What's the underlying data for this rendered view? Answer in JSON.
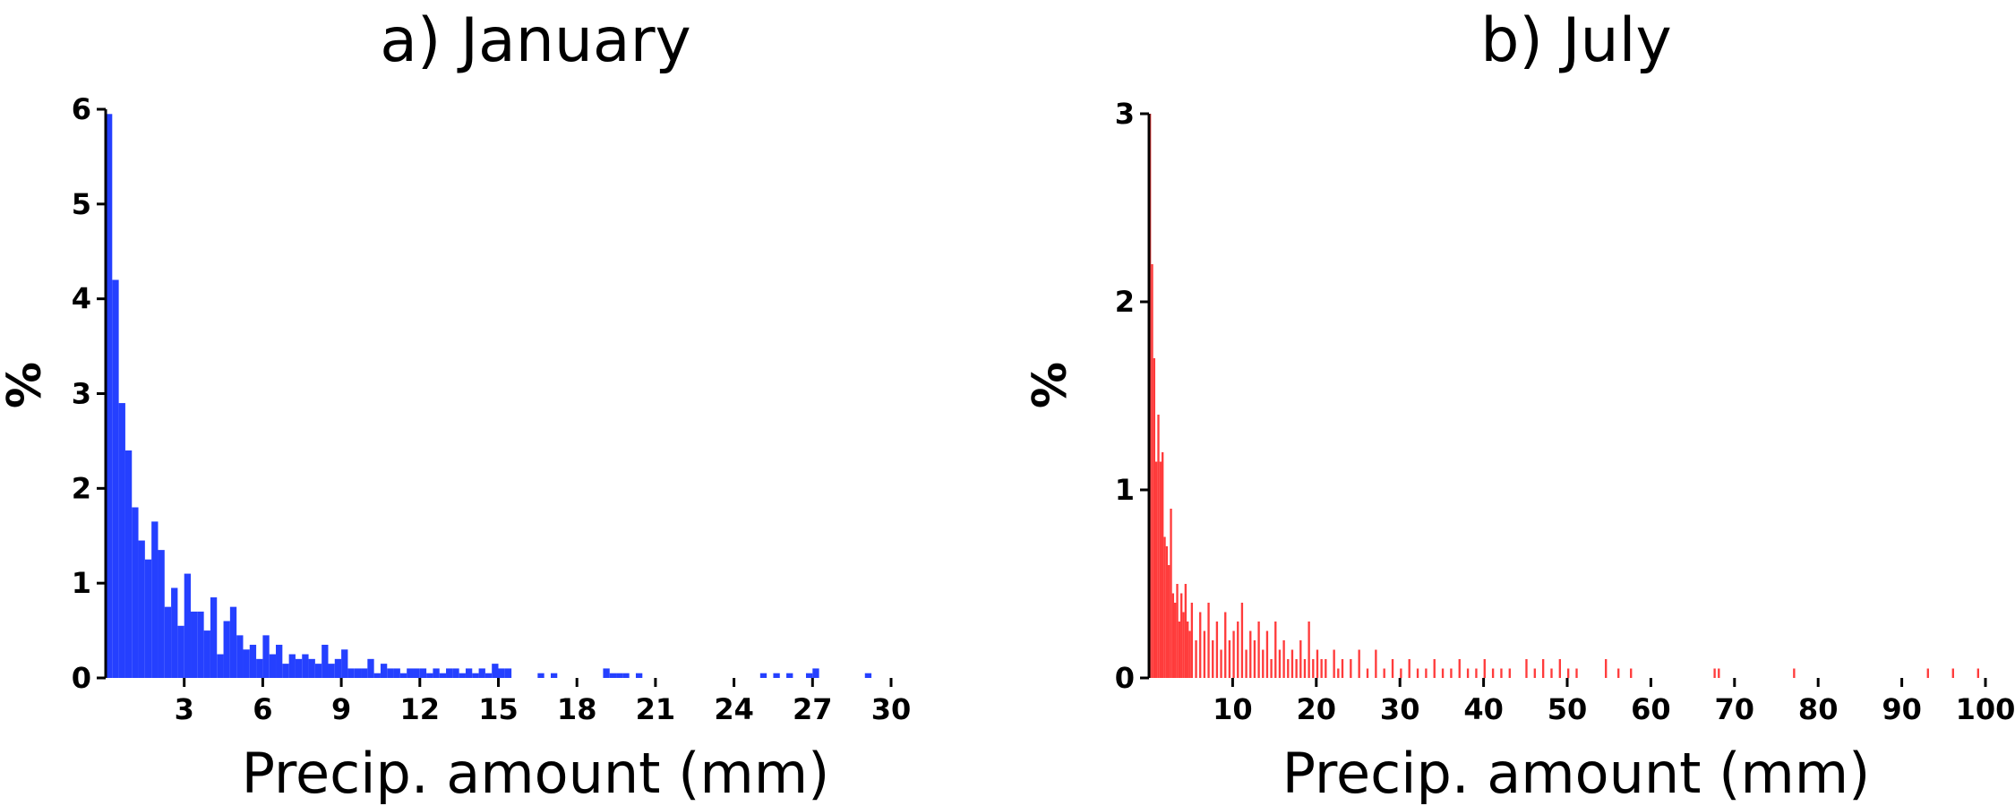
{
  "chart_data": [
    {
      "type": "bar",
      "title": "a) January",
      "xlabel": "Precip. amount (mm)",
      "ylabel": "%",
      "color": "#2540ff",
      "xlim": [
        0,
        30
      ],
      "ylim": [
        0,
        6
      ],
      "xticks": [
        3,
        6,
        9,
        12,
        15,
        18,
        21,
        24,
        27,
        30
      ],
      "yticks": [
        0,
        1,
        2,
        3,
        4,
        5,
        6
      ],
      "bin_width": 0.25,
      "bins": [
        {
          "x": 0.0,
          "y": 5.95
        },
        {
          "x": 0.25,
          "y": 4.2
        },
        {
          "x": 0.5,
          "y": 2.9
        },
        {
          "x": 0.75,
          "y": 2.4
        },
        {
          "x": 1.0,
          "y": 1.8
        },
        {
          "x": 1.25,
          "y": 1.45
        },
        {
          "x": 1.5,
          "y": 1.25
        },
        {
          "x": 1.75,
          "y": 1.65
        },
        {
          "x": 2.0,
          "y": 1.35
        },
        {
          "x": 2.25,
          "y": 0.75
        },
        {
          "x": 2.5,
          "y": 0.95
        },
        {
          "x": 2.75,
          "y": 0.55
        },
        {
          "x": 3.0,
          "y": 1.1
        },
        {
          "x": 3.25,
          "y": 0.7
        },
        {
          "x": 3.5,
          "y": 0.7
        },
        {
          "x": 3.75,
          "y": 0.5
        },
        {
          "x": 4.0,
          "y": 0.85
        },
        {
          "x": 4.25,
          "y": 0.25
        },
        {
          "x": 4.5,
          "y": 0.6
        },
        {
          "x": 4.75,
          "y": 0.75
        },
        {
          "x": 5.0,
          "y": 0.45
        },
        {
          "x": 5.25,
          "y": 0.3
        },
        {
          "x": 5.5,
          "y": 0.35
        },
        {
          "x": 5.75,
          "y": 0.2
        },
        {
          "x": 6.0,
          "y": 0.45
        },
        {
          "x": 6.25,
          "y": 0.25
        },
        {
          "x": 6.5,
          "y": 0.35
        },
        {
          "x": 6.75,
          "y": 0.15
        },
        {
          "x": 7.0,
          "y": 0.25
        },
        {
          "x": 7.25,
          "y": 0.2
        },
        {
          "x": 7.5,
          "y": 0.25
        },
        {
          "x": 7.75,
          "y": 0.2
        },
        {
          "x": 8.0,
          "y": 0.15
        },
        {
          "x": 8.25,
          "y": 0.35
        },
        {
          "x": 8.5,
          "y": 0.15
        },
        {
          "x": 8.75,
          "y": 0.2
        },
        {
          "x": 9.0,
          "y": 0.3
        },
        {
          "x": 9.25,
          "y": 0.1
        },
        {
          "x": 9.5,
          "y": 0.1
        },
        {
          "x": 9.75,
          "y": 0.1
        },
        {
          "x": 10.0,
          "y": 0.2
        },
        {
          "x": 10.25,
          "y": 0.05
        },
        {
          "x": 10.5,
          "y": 0.15
        },
        {
          "x": 10.75,
          "y": 0.1
        },
        {
          "x": 11.0,
          "y": 0.1
        },
        {
          "x": 11.25,
          "y": 0.05
        },
        {
          "x": 11.5,
          "y": 0.1
        },
        {
          "x": 11.75,
          "y": 0.1
        },
        {
          "x": 12.0,
          "y": 0.1
        },
        {
          "x": 12.25,
          "y": 0.05
        },
        {
          "x": 12.5,
          "y": 0.1
        },
        {
          "x": 12.75,
          "y": 0.05
        },
        {
          "x": 13.0,
          "y": 0.1
        },
        {
          "x": 13.25,
          "y": 0.1
        },
        {
          "x": 13.5,
          "y": 0.05
        },
        {
          "x": 13.75,
          "y": 0.1
        },
        {
          "x": 14.0,
          "y": 0.05
        },
        {
          "x": 14.25,
          "y": 0.1
        },
        {
          "x": 14.5,
          "y": 0.05
        },
        {
          "x": 14.75,
          "y": 0.15
        },
        {
          "x": 15.0,
          "y": 0.1
        },
        {
          "x": 15.25,
          "y": 0.1
        },
        {
          "x": 16.5,
          "y": 0.05
        },
        {
          "x": 17.0,
          "y": 0.05
        },
        {
          "x": 19.0,
          "y": 0.1
        },
        {
          "x": 19.25,
          "y": 0.05
        },
        {
          "x": 19.5,
          "y": 0.05
        },
        {
          "x": 19.75,
          "y": 0.05
        },
        {
          "x": 20.25,
          "y": 0.05
        },
        {
          "x": 25.0,
          "y": 0.05
        },
        {
          "x": 25.5,
          "y": 0.05
        },
        {
          "x": 26.0,
          "y": 0.05
        },
        {
          "x": 26.75,
          "y": 0.05
        },
        {
          "x": 27.0,
          "y": 0.1
        },
        {
          "x": 29.0,
          "y": 0.05
        }
      ]
    },
    {
      "type": "bar",
      "title": "b) July",
      "xlabel": "Precip. amount (mm)",
      "ylabel": "%",
      "color": "#ff3b3b",
      "xlim": [
        0,
        100
      ],
      "ylim": [
        0,
        3
      ],
      "xticks": [
        10,
        20,
        30,
        40,
        50,
        60,
        70,
        80,
        90,
        100
      ],
      "yticks": [
        0,
        1,
        2,
        3
      ],
      "bin_width": 0.25,
      "bins": [
        {
          "x": 0.0,
          "y": 3.0
        },
        {
          "x": 0.25,
          "y": 2.2
        },
        {
          "x": 0.5,
          "y": 1.7
        },
        {
          "x": 0.75,
          "y": 1.15
        },
        {
          "x": 1.0,
          "y": 1.4
        },
        {
          "x": 1.25,
          "y": 1.15
        },
        {
          "x": 1.5,
          "y": 1.2
        },
        {
          "x": 1.75,
          "y": 0.75
        },
        {
          "x": 2.0,
          "y": 0.7
        },
        {
          "x": 2.25,
          "y": 0.6
        },
        {
          "x": 2.5,
          "y": 0.9
        },
        {
          "x": 2.75,
          "y": 0.45
        },
        {
          "x": 3.0,
          "y": 0.4
        },
        {
          "x": 3.25,
          "y": 0.5
        },
        {
          "x": 3.5,
          "y": 0.3
        },
        {
          "x": 3.75,
          "y": 0.45
        },
        {
          "x": 4.0,
          "y": 0.35
        },
        {
          "x": 4.25,
          "y": 0.5
        },
        {
          "x": 4.5,
          "y": 0.3
        },
        {
          "x": 4.75,
          "y": 0.25
        },
        {
          "x": 5.0,
          "y": 0.4
        },
        {
          "x": 5.5,
          "y": 0.2
        },
        {
          "x": 6.0,
          "y": 0.35
        },
        {
          "x": 6.5,
          "y": 0.25
        },
        {
          "x": 7.0,
          "y": 0.4
        },
        {
          "x": 7.5,
          "y": 0.2
        },
        {
          "x": 8.0,
          "y": 0.3
        },
        {
          "x": 8.5,
          "y": 0.15
        },
        {
          "x": 9.0,
          "y": 0.35
        },
        {
          "x": 9.5,
          "y": 0.2
        },
        {
          "x": 10.0,
          "y": 0.25
        },
        {
          "x": 10.5,
          "y": 0.3
        },
        {
          "x": 11.0,
          "y": 0.4
        },
        {
          "x": 11.5,
          "y": 0.15
        },
        {
          "x": 12.0,
          "y": 0.25
        },
        {
          "x": 12.5,
          "y": 0.2
        },
        {
          "x": 13.0,
          "y": 0.3
        },
        {
          "x": 13.5,
          "y": 0.15
        },
        {
          "x": 14.0,
          "y": 0.25
        },
        {
          "x": 14.5,
          "y": 0.1
        },
        {
          "x": 15.0,
          "y": 0.3
        },
        {
          "x": 15.5,
          "y": 0.15
        },
        {
          "x": 16.0,
          "y": 0.2
        },
        {
          "x": 16.5,
          "y": 0.1
        },
        {
          "x": 17.0,
          "y": 0.15
        },
        {
          "x": 17.5,
          "y": 0.1
        },
        {
          "x": 18.0,
          "y": 0.2
        },
        {
          "x": 18.5,
          "y": 0.1
        },
        {
          "x": 19.0,
          "y": 0.3
        },
        {
          "x": 19.5,
          "y": 0.1
        },
        {
          "x": 20.0,
          "y": 0.15
        },
        {
          "x": 20.5,
          "y": 0.1
        },
        {
          "x": 21.0,
          "y": 0.1
        },
        {
          "x": 22.0,
          "y": 0.15
        },
        {
          "x": 22.5,
          "y": 0.05
        },
        {
          "x": 23.0,
          "y": 0.1
        },
        {
          "x": 24.0,
          "y": 0.1
        },
        {
          "x": 25.0,
          "y": 0.15
        },
        {
          "x": 26.0,
          "y": 0.05
        },
        {
          "x": 27.0,
          "y": 0.15
        },
        {
          "x": 28.0,
          "y": 0.05
        },
        {
          "x": 29.0,
          "y": 0.1
        },
        {
          "x": 30.0,
          "y": 0.05
        },
        {
          "x": 31.0,
          "y": 0.1
        },
        {
          "x": 32.0,
          "y": 0.05
        },
        {
          "x": 33.0,
          "y": 0.05
        },
        {
          "x": 34.0,
          "y": 0.1
        },
        {
          "x": 35.0,
          "y": 0.05
        },
        {
          "x": 36.0,
          "y": 0.05
        },
        {
          "x": 37.0,
          "y": 0.1
        },
        {
          "x": 38.0,
          "y": 0.05
        },
        {
          "x": 39.0,
          "y": 0.05
        },
        {
          "x": 40.0,
          "y": 0.1
        },
        {
          "x": 41.0,
          "y": 0.05
        },
        {
          "x": 42.0,
          "y": 0.05
        },
        {
          "x": 43.0,
          "y": 0.05
        },
        {
          "x": 45.0,
          "y": 0.1
        },
        {
          "x": 46.0,
          "y": 0.05
        },
        {
          "x": 47.0,
          "y": 0.1
        },
        {
          "x": 48.0,
          "y": 0.05
        },
        {
          "x": 49.0,
          "y": 0.1
        },
        {
          "x": 50.0,
          "y": 0.05
        },
        {
          "x": 51.0,
          "y": 0.05
        },
        {
          "x": 54.5,
          "y": 0.1
        },
        {
          "x": 56.0,
          "y": 0.05
        },
        {
          "x": 57.5,
          "y": 0.05
        },
        {
          "x": 67.5,
          "y": 0.05
        },
        {
          "x": 68.0,
          "y": 0.05
        },
        {
          "x": 77.0,
          "y": 0.05
        },
        {
          "x": 93.0,
          "y": 0.05
        },
        {
          "x": 96.0,
          "y": 0.05
        },
        {
          "x": 99.0,
          "y": 0.05
        }
      ]
    }
  ]
}
